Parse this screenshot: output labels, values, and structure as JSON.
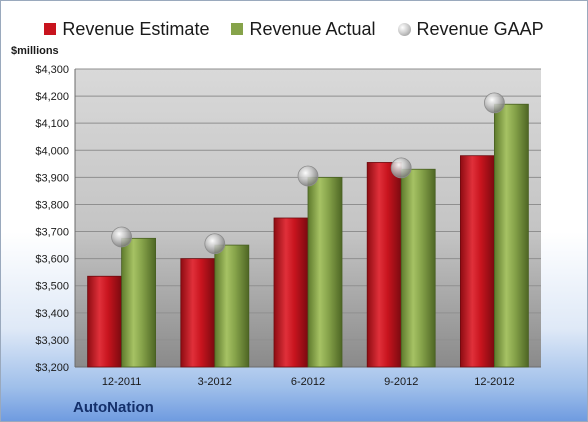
{
  "legend": {
    "estimate": "Revenue Estimate",
    "actual": "Revenue Actual",
    "gaap": "Revenue GAAP"
  },
  "unit_label": "$millions",
  "company": "AutoNation",
  "colors": {
    "estimate": "#c8141e",
    "actual": "#86a34a",
    "gaap": "#b8b8b8",
    "plot_bg": "#c9c9c9"
  },
  "chart_data": {
    "type": "bar",
    "categories": [
      "12-2011",
      "3-2012",
      "6-2012",
      "9-2012",
      "12-2012"
    ],
    "series": [
      {
        "name": "Revenue Estimate",
        "values": [
          3535,
          3600,
          3750,
          3955,
          3980
        ]
      },
      {
        "name": "Revenue Actual",
        "values": [
          3675,
          3650,
          3900,
          3930,
          4170
        ]
      },
      {
        "name": "Revenue GAAP",
        "values": [
          3680,
          3655,
          3905,
          3935,
          4175
        ]
      }
    ],
    "ylabel": "$millions",
    "ylim": [
      3200,
      4300
    ],
    "yticks": [
      "$3,200",
      "$3,300",
      "$3,400",
      "$3,500",
      "$3,600",
      "$3,700",
      "$3,800",
      "$3,900",
      "$4,000",
      "$4,100",
      "$4,200",
      "$4,300"
    ],
    "ytick_values": [
      3200,
      3300,
      3400,
      3500,
      3600,
      3700,
      3800,
      3900,
      4000,
      4100,
      4200,
      4300
    ],
    "grid": true,
    "legend_position": "top"
  }
}
